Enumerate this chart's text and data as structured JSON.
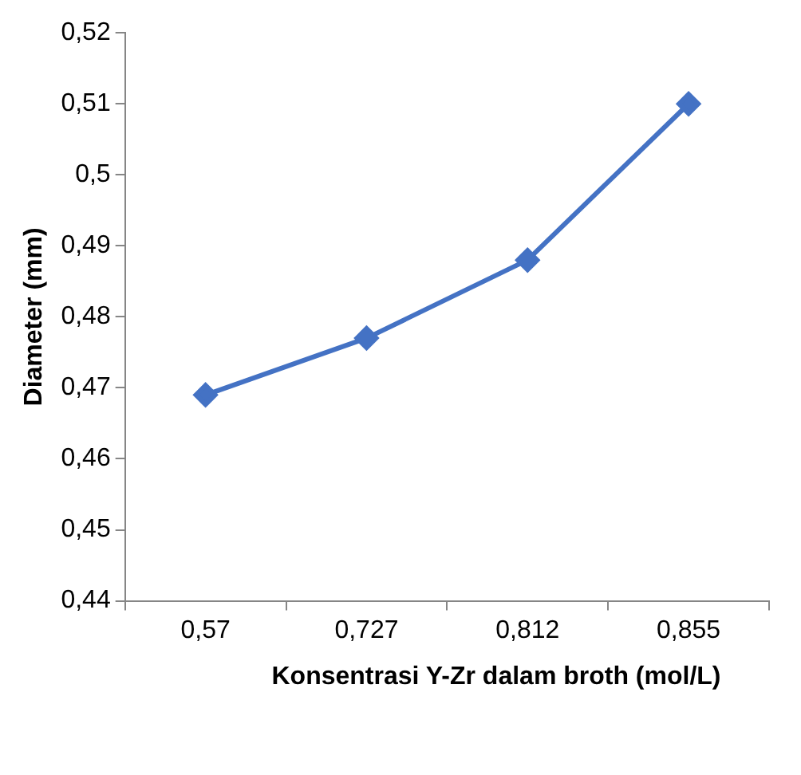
{
  "chart_data": {
    "type": "line",
    "xlabel": "Konsentrasi Y-Zr dalam broth (mol/L)",
    "ylabel": "Diameter (mm)",
    "categories": [
      "0,57",
      "0,727",
      "0,812",
      "0,855"
    ],
    "series": [
      {
        "color": "#4472c4",
        "values": [
          0.469,
          0.477,
          0.488,
          0.51
        ]
      }
    ],
    "ylim": [
      0.44,
      0.52
    ],
    "yticks": [
      {
        "value": 0.44,
        "label": "0,44"
      },
      {
        "value": 0.45,
        "label": "0,45"
      },
      {
        "value": 0.46,
        "label": "0,46"
      },
      {
        "value": 0.47,
        "label": "0,47"
      },
      {
        "value": 0.48,
        "label": "0,48"
      },
      {
        "value": 0.49,
        "label": "0,49"
      },
      {
        "value": 0.5,
        "label": "0,5"
      },
      {
        "value": 0.51,
        "label": "0,51"
      },
      {
        "value": 0.52,
        "label": "0,52"
      }
    ],
    "grid": false,
    "legend": false,
    "marker": "diamond",
    "line_style": "solid"
  }
}
